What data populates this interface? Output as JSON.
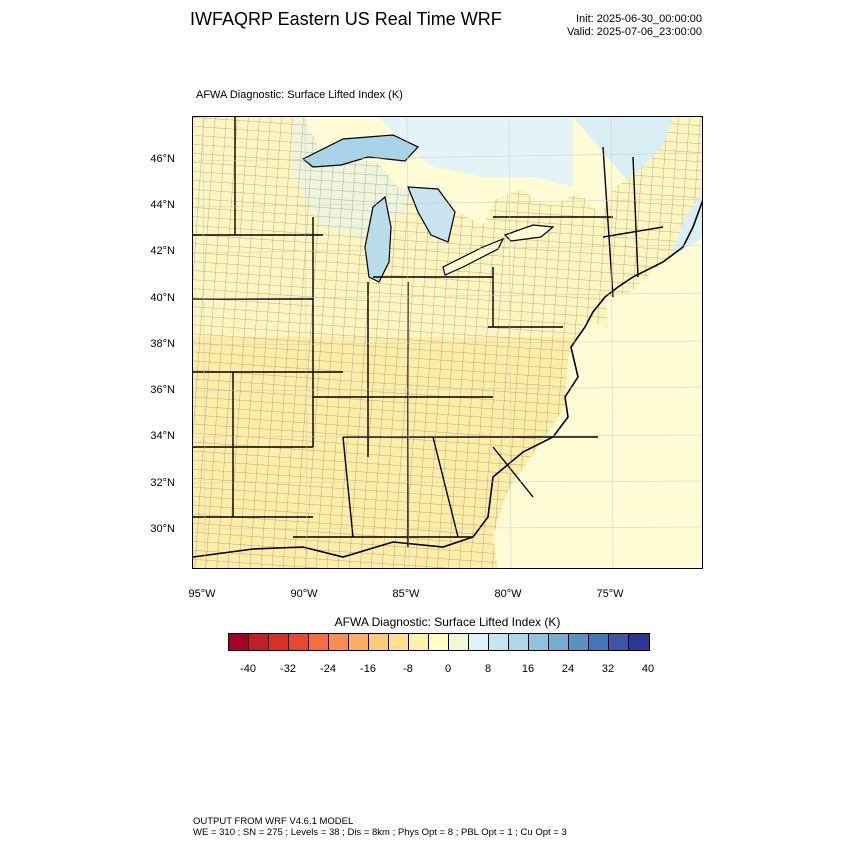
{
  "header": {
    "title": "IWFAQRP Eastern US Real Time WRF",
    "init": "Init: 2025-06-30_00:00:00",
    "valid": "Valid: 2025-07-06_23:00:00"
  },
  "plot": {
    "label": "AFWA Diagnostic: Surface Lifted Index   (K)",
    "lat_labels": [
      "46°N",
      "44°N",
      "42°N",
      "40°N",
      "38°N",
      "36°N",
      "34°N",
      "32°N",
      "30°N"
    ],
    "lon_labels": [
      "95°W",
      "90°W",
      "85°W",
      "80°W",
      "75°W"
    ],
    "colors": {
      "land": "#fdf5bf",
      "land_south": "#fee99d",
      "water_neutral": "#fffcd5",
      "water_stable": "#d9eff4",
      "lake_stable": "#a9d3e8",
      "county_line": "#000000"
    }
  },
  "colorbar": {
    "title": "AFWA Diagnostic: Surface Lifted Index  (K)",
    "colors": [
      "#a50026",
      "#c11f27",
      "#d73027",
      "#e34a33",
      "#f46d43",
      "#f88d52",
      "#fdae61",
      "#fec979",
      "#fee090",
      "#fff0ab",
      "#ffffbf",
      "#f1f9d9",
      "#e0f3f8",
      "#c5e6f0",
      "#abd9e9",
      "#8ec3de",
      "#74add1",
      "#5c90c2",
      "#4575b4",
      "#3b56a2",
      "#313695"
    ],
    "ticks": [
      "-40",
      "-32",
      "-24",
      "-16",
      "-8",
      "0",
      "8",
      "16",
      "24",
      "32",
      "40"
    ]
  },
  "footer": {
    "line1": "OUTPUT FROM WRF V4.6.1 MODEL",
    "line2": "WE = 310 ; SN = 275 ; Levels = 38 ; Dis = 8km ; Phys Opt = 8 ; PBL Opt = 1 ; Cu Opt = 3"
  }
}
